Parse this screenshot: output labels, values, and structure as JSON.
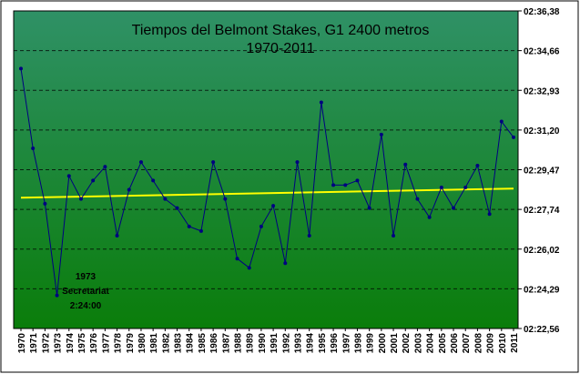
{
  "chart_data": {
    "type": "line",
    "title": "Tiempos del Belmont Stakes, G1 2400 metros",
    "subtitle": "1970-2011",
    "x": [
      "1970",
      "1971",
      "1972",
      "1973",
      "1974",
      "1975",
      "1976",
      "1977",
      "1978",
      "1979",
      "1980",
      "1981",
      "1982",
      "1983",
      "1984",
      "1985",
      "1986",
      "1987",
      "1988",
      "1989",
      "1990",
      "1991",
      "1992",
      "1993",
      "1994",
      "1995",
      "1996",
      "1997",
      "1998",
      "1999",
      "2000",
      "2001",
      "2002",
      "2003",
      "2004",
      "2005",
      "2006",
      "2007",
      "2008",
      "2009",
      "2010",
      "2011"
    ],
    "series": [
      {
        "values": [
          153.87,
          150.4,
          147.99,
          144.0,
          149.2,
          148.2,
          149.0,
          149.6,
          146.6,
          148.6,
          149.8,
          149.0,
          148.2,
          147.8,
          147.0,
          146.8,
          149.8,
          148.2,
          145.6,
          145.2,
          147.0,
          147.9,
          145.4,
          149.8,
          146.6,
          152.4,
          148.8,
          148.8,
          149.0,
          147.8,
          151.0,
          146.6,
          149.7,
          148.2,
          147.4,
          148.7,
          147.8,
          148.7,
          149.65,
          147.54,
          151.57,
          150.88
        ],
        "color": "#000080"
      },
      {
        "type": "trend",
        "start": 148.25,
        "end": 148.65,
        "color": "#ffff00"
      }
    ],
    "yticks": [
      "02:22,56",
      "02:24,29",
      "02:26,02",
      "02:27,74",
      "02:29,47",
      "02:31,20",
      "02:32,93",
      "02:34,66",
      "02:36,38"
    ],
    "ylim": [
      142.56,
      156.38
    ],
    "gridlines": true,
    "background": {
      "top": "#2f9166",
      "bottom": "#0a7d0a"
    },
    "annotation": [
      "1973",
      "Secretariat",
      "2:24:00"
    ]
  }
}
